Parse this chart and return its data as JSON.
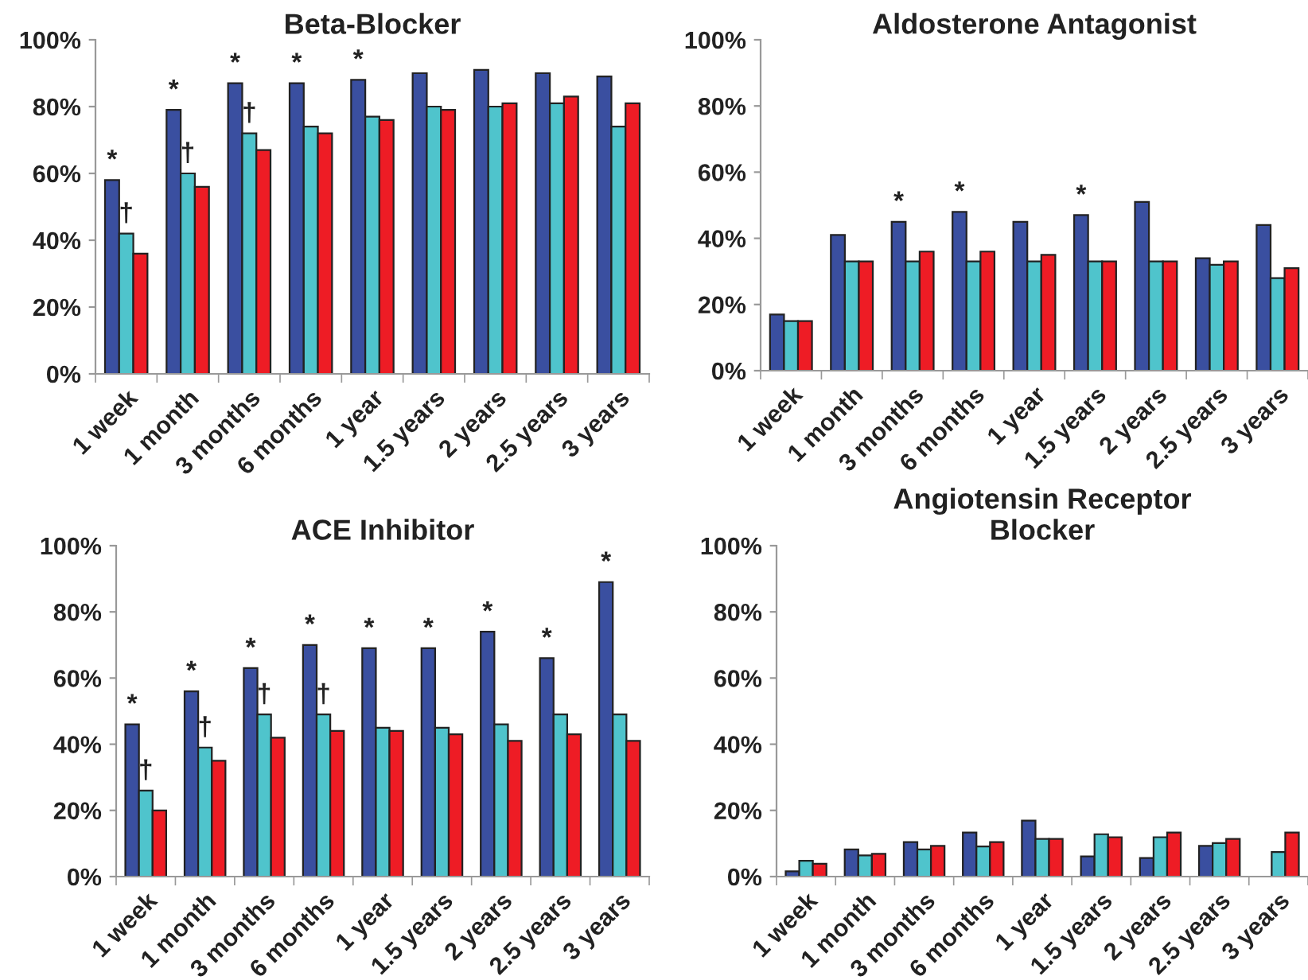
{
  "chart_data": [
    {
      "type": "bar",
      "title": "Beta-Blocker",
      "categories": [
        "1 week",
        "1 month",
        "3 months",
        "6 months",
        "1 year",
        "1.5 years",
        "2 years",
        "2.5 years",
        "3 years"
      ],
      "series": [
        {
          "color": "#3a4fa0",
          "values": [
            58,
            79,
            87,
            87,
            88,
            90,
            91,
            90,
            89
          ],
          "value_labels": [
            "*",
            "*",
            "*",
            "*",
            "*",
            null,
            null,
            null,
            null
          ]
        },
        {
          "color": "#4fc4cc",
          "values": [
            42,
            60,
            72,
            74,
            77,
            80,
            80,
            81,
            74
          ],
          "value_labels": [
            "†",
            "†",
            "†",
            null,
            null,
            null,
            null,
            null,
            null
          ]
        },
        {
          "color": "#ee1c25",
          "values": [
            36,
            56,
            67,
            72,
            76,
            79,
            81,
            83,
            81
          ]
        }
      ],
      "ylim": [
        0,
        100
      ],
      "yticks": [
        {
          "value": 0,
          "label": "0%"
        },
        {
          "value": 20,
          "label": "20%"
        },
        {
          "value": 40,
          "label": "40%"
        },
        {
          "value": 60,
          "label": "60%"
        },
        {
          "value": 80,
          "label": "80%"
        },
        {
          "value": 100,
          "label": "100%"
        }
      ]
    },
    {
      "type": "bar",
      "title": "Aldosterone Antagonist",
      "categories": [
        "1 week",
        "1 month",
        "3 months",
        "6 months",
        "1 year",
        "1.5 years",
        "2 years",
        "2.5 years",
        "3 years"
      ],
      "series": [
        {
          "color": "#3a4fa0",
          "values": [
            17,
            41,
            45,
            48,
            45,
            47,
            51,
            34,
            44
          ],
          "value_labels": [
            null,
            null,
            "*",
            "*",
            null,
            "*",
            null,
            null,
            null
          ]
        },
        {
          "color": "#4fc4cc",
          "values": [
            15,
            33,
            33,
            33,
            33,
            33,
            33,
            32,
            28
          ]
        },
        {
          "color": "#ee1c25",
          "values": [
            15,
            33,
            36,
            36,
            35,
            33,
            33,
            33,
            31
          ]
        }
      ],
      "ylim": [
        0,
        100
      ],
      "yticks": [
        {
          "value": 0,
          "label": "0%"
        },
        {
          "value": 20,
          "label": "20%"
        },
        {
          "value": 40,
          "label": "40%"
        },
        {
          "value": 60,
          "label": "60%"
        },
        {
          "value": 80,
          "label": "80%"
        },
        {
          "value": 100,
          "label": "100%"
        }
      ]
    },
    {
      "type": "bar",
      "title": "ACE Inhibitor",
      "categories": [
        "1 week",
        "1 month",
        "3 months",
        "6 months",
        "1 year",
        "1.5 years",
        "2 years",
        "2.5 years",
        "3 years"
      ],
      "series": [
        {
          "color": "#3a4fa0",
          "values": [
            46,
            56,
            63,
            70,
            69,
            69,
            74,
            66,
            89
          ],
          "value_labels": [
            "*",
            "*",
            "*",
            "*",
            "*",
            "*",
            "*",
            "*",
            "*"
          ]
        },
        {
          "color": "#4fc4cc",
          "values": [
            26,
            39,
            49,
            49,
            45,
            45,
            46,
            49,
            49
          ],
          "value_labels": [
            "†",
            "†",
            "†",
            "†",
            null,
            null,
            null,
            null,
            null
          ]
        },
        {
          "color": "#ee1c25",
          "values": [
            20,
            35,
            42,
            44,
            44,
            43,
            41,
            43,
            41
          ]
        }
      ],
      "ylim": [
        0,
        100
      ],
      "yticks": [
        {
          "value": 0,
          "label": "0%"
        },
        {
          "value": 20,
          "label": "20%"
        },
        {
          "value": 40,
          "label": "40%"
        },
        {
          "value": 60,
          "label": "60%"
        },
        {
          "value": 80,
          "label": "80%"
        },
        {
          "value": 100,
          "label": "100%"
        }
      ]
    },
    {
      "type": "bar",
      "title": "Angiotensin Receptor\nBlocker",
      "categories": [
        "1 week",
        "1 month",
        "3 months",
        "6 months",
        "1 year",
        "1.5 years",
        "2 years",
        "2.5 years",
        "3 years"
      ],
      "series": [
        {
          "color": "#3a4fa0",
          "values": [
            1.6,
            8.2,
            10.4,
            13.3,
            16.9,
            6.1,
            5.6,
            9.3,
            null
          ]
        },
        {
          "color": "#4fc4cc",
          "values": [
            4.8,
            6.4,
            8.2,
            9.1,
            11.4,
            12.8,
            11.9,
            10.1,
            7.4
          ]
        },
        {
          "color": "#ee1c25",
          "values": [
            3.9,
            6.9,
            9.3,
            10.4,
            11.4,
            11.9,
            13.3,
            11.4,
            13.3
          ]
        }
      ],
      "ylim": [
        0,
        100
      ],
      "yticks": [
        {
          "value": 0,
          "label": "0%"
        },
        {
          "value": 20,
          "label": "20%"
        },
        {
          "value": 40,
          "label": "40%"
        },
        {
          "value": 60,
          "label": "60%"
        },
        {
          "value": 80,
          "label": "80%"
        },
        {
          "value": 100,
          "label": "100%"
        }
      ]
    }
  ]
}
